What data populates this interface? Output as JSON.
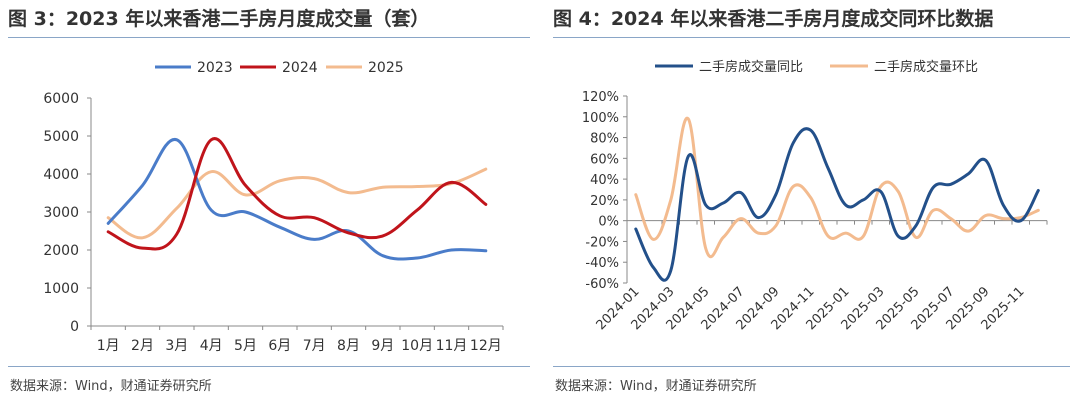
{
  "chart_data": [
    {
      "type": "line",
      "title": "图 3：2023 年以来香港二手房月度成交量（套）",
      "source": "数据来源：Wind，财通证券研究所",
      "categories": [
        "1月",
        "2月",
        "3月",
        "4月",
        "5月",
        "6月",
        "7月",
        "8月",
        "9月",
        "10月",
        "11月",
        "12月"
      ],
      "ylim": [
        0,
        6000
      ],
      "yticks": [
        "0",
        "1000",
        "2000",
        "3000",
        "4000",
        "5000",
        "6000"
      ],
      "legend_position": "top-center",
      "series": [
        {
          "name": "2023",
          "color": "#4a7cc9",
          "values": [
            2700,
            3700,
            4900,
            3050,
            3000,
            2600,
            2280,
            2500,
            1850,
            1790,
            2000,
            1980
          ]
        },
        {
          "name": "2024",
          "color": "#c0141b",
          "values": [
            2480,
            2050,
            2420,
            4900,
            3700,
            2900,
            2850,
            2450,
            2370,
            3050,
            3780,
            3200
          ]
        },
        {
          "name": "2025",
          "color": "#f3bb8f",
          "values": [
            2850,
            2320,
            3100,
            4060,
            3450,
            3820,
            3880,
            3510,
            3650,
            3670,
            3750,
            4130
          ]
        }
      ]
    },
    {
      "type": "line",
      "title": "图 4：2024 年以来香港二手房月度成交同环比数据",
      "source": "数据来源：Wind，财通证券研究所",
      "categories": [
        "2024-01",
        "2024-02",
        "2024-03",
        "2024-04",
        "2024-05",
        "2024-06",
        "2024-07",
        "2024-08",
        "2024-09",
        "2024-10",
        "2024-11",
        "2024-12",
        "2025-01",
        "2025-02",
        "2025-03",
        "2025-04",
        "2025-05",
        "2025-06",
        "2025-07",
        "2025-08",
        "2025-09",
        "2025-10",
        "2025-11",
        "2025-12"
      ],
      "x_tick_labels": [
        "2024-01",
        "2024-03",
        "2024-05",
        "2024-07",
        "2024-09",
        "2024-11",
        "2025-01",
        "2025-03",
        "2025-05",
        "2025-07",
        "2025-09",
        "2025-11"
      ],
      "ylim": [
        -60,
        120
      ],
      "yticks": [
        "120%",
        "100%",
        "80%",
        "60%",
        "40%",
        "20%",
        "0%",
        "-20%",
        "-40%",
        "-60%"
      ],
      "legend_position": "top-center",
      "series": [
        {
          "name": "二手房成交量同比",
          "color": "#23508a",
          "values": [
            -8,
            -45,
            -48,
            62,
            15,
            17,
            27,
            3,
            25,
            75,
            87,
            50,
            15,
            20,
            28,
            -15,
            -5,
            32,
            35,
            45,
            58,
            15,
            0,
            29
          ]
        },
        {
          "name": "二手房成交量环比",
          "color": "#f3bb8f",
          "values": [
            25,
            -18,
            20,
            98,
            -27,
            -16,
            2,
            -12,
            -5,
            33,
            22,
            -15,
            -12,
            -15,
            33,
            28,
            -16,
            10,
            2,
            -10,
            5,
            2,
            3,
            10
          ]
        }
      ]
    }
  ]
}
